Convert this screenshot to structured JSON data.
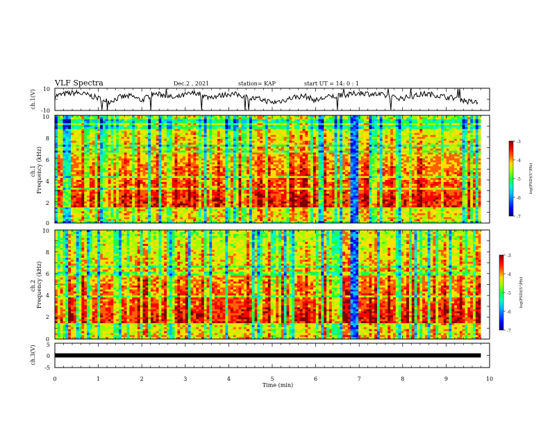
{
  "header": {
    "title": "VLF Spectra",
    "date": "Dec.2 , 2021",
    "station": "station= KAP",
    "start_ut": "start  UT =  14: 0  : 1"
  },
  "colormap": [
    "#00007f",
    "#0000ff",
    "#0060ff",
    "#00c0ff",
    "#00ffc0",
    "#20ff40",
    "#a0ff00",
    "#ffe000",
    "#ff6000",
    "#ff0000",
    "#7f0000"
  ],
  "chart_data": [
    {
      "type": "line",
      "panel": "ch1-waveform",
      "ylabel": "ch.1(V)",
      "ylim": [
        -10,
        10
      ],
      "y_tick_labels": [
        "10",
        "-10"
      ],
      "xlim": [
        0,
        10
      ],
      "x_unit": "min",
      "series": [
        {
          "x": [
            0,
            0.25,
            0.5,
            0.75,
            1,
            1.25,
            1.5,
            1.75,
            2,
            2.25,
            2.5,
            2.75,
            3,
            3.25,
            3.5,
            3.75,
            4,
            4.25,
            4.5,
            4.75,
            5,
            5.25,
            5.5,
            5.75,
            6,
            6.25,
            6.5,
            6.75,
            7,
            7.25,
            7.5,
            7.75,
            8,
            8.25,
            8.5,
            8.75,
            9,
            9.25,
            9.5,
            9.75
          ],
          "values": [
            3,
            5,
            6,
            4,
            1,
            -2,
            2,
            3,
            -1,
            5,
            4,
            1,
            4,
            6,
            2,
            3,
            5,
            4,
            1,
            0,
            -3,
            -1,
            2,
            3,
            -1,
            2,
            3,
            4,
            6,
            5,
            4,
            2,
            1,
            3,
            5,
            4,
            2,
            1,
            -2,
            -3
          ]
        }
      ]
    },
    {
      "type": "heatmap",
      "panel": "ch1-spectrogram",
      "ylabel": "ch.1\nFrequency (kHz)",
      "ylim": [
        0,
        10
      ],
      "y_tick_labels": [
        "0",
        "2",
        "4",
        "6",
        "8",
        "10"
      ],
      "xlim": [
        0,
        10
      ],
      "colorbar": {
        "label": "log(PSD)(V²/Hz)",
        "range": [
          -7,
          -3
        ],
        "tick_labels": [
          "-3",
          "-4",
          "-5",
          "-6",
          "-7"
        ]
      }
    },
    {
      "type": "heatmap",
      "panel": "ch2-spectrogram",
      "ylabel": "ch.2\nFrequency (kHz)",
      "ylim": [
        0,
        10
      ],
      "y_tick_labels": [
        "0",
        "2",
        "4",
        "6",
        "8",
        "10"
      ],
      "xlim": [
        0,
        10
      ],
      "colorbar": {
        "label": "log(PSD)(V²/Hz)",
        "range": [
          -7,
          -3
        ],
        "tick_labels": [
          "-3",
          "-4",
          "-5",
          "-6",
          "-7"
        ]
      }
    },
    {
      "type": "line",
      "panel": "ch3-waveform",
      "ylabel": "ch.3(V)",
      "ylim": [
        -5,
        5
      ],
      "y_tick_labels": [
        "5",
        "0",
        "-5"
      ],
      "xlim": [
        0,
        10
      ],
      "xlabel": "Time  (min)",
      "x_tick_labels": [
        "0",
        "1",
        "2",
        "3",
        "4",
        "5",
        "6",
        "7",
        "8",
        "9",
        "10"
      ],
      "series": [
        {
          "x": [
            0,
            9.8
          ],
          "values": [
            0,
            0
          ]
        }
      ]
    }
  ]
}
